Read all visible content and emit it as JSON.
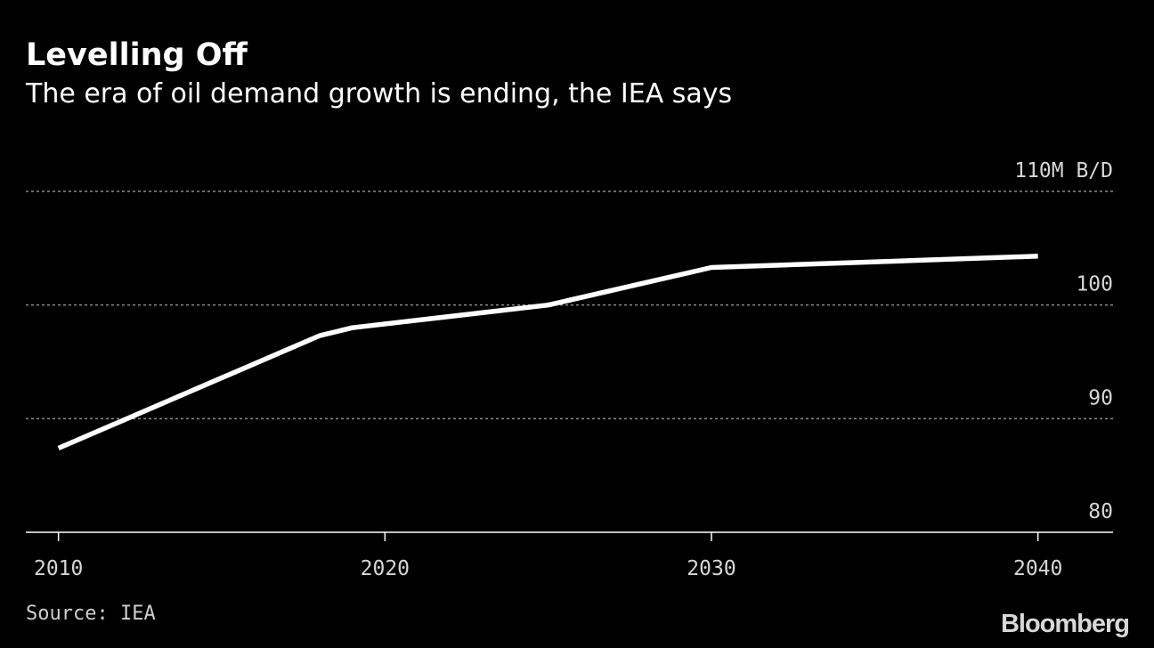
{
  "title": "Levelling Off",
  "subtitle": "The era of oil demand growth is ending, the IEA says",
  "source": "Source: IEA",
  "brand": "Bloomberg",
  "colors": {
    "background": "#000000",
    "line": "#ffffff",
    "grid": "#8c8c8c",
    "axis": "#ffffff",
    "tick_text": "#d6d6d6"
  },
  "chart_data": {
    "type": "line",
    "title": "Levelling Off",
    "subtitle": "The era of oil demand growth is ending, the IEA says",
    "xlabel": "",
    "ylabel": "",
    "unit_label": "110M B/D",
    "xlim": [
      2009,
      2042.3
    ],
    "ylim": [
      80,
      110
    ],
    "x_ticks": [
      2010,
      2020,
      2030,
      2040
    ],
    "x_tick_labels": [
      "2010",
      "2020",
      "2030",
      "2040"
    ],
    "y_ticks": [
      80,
      90,
      100,
      110
    ],
    "y_tick_labels": [
      "80",
      "90",
      "100",
      "110M B/D"
    ],
    "grid": "horizontal dotted",
    "legend": "none",
    "series": [
      {
        "x": [
          2010,
          2018,
          2019,
          2025,
          2030,
          2036,
          2040
        ],
        "y": [
          87.4,
          97.3,
          98.0,
          100.0,
          103.3,
          103.9,
          104.3
        ]
      }
    ]
  }
}
